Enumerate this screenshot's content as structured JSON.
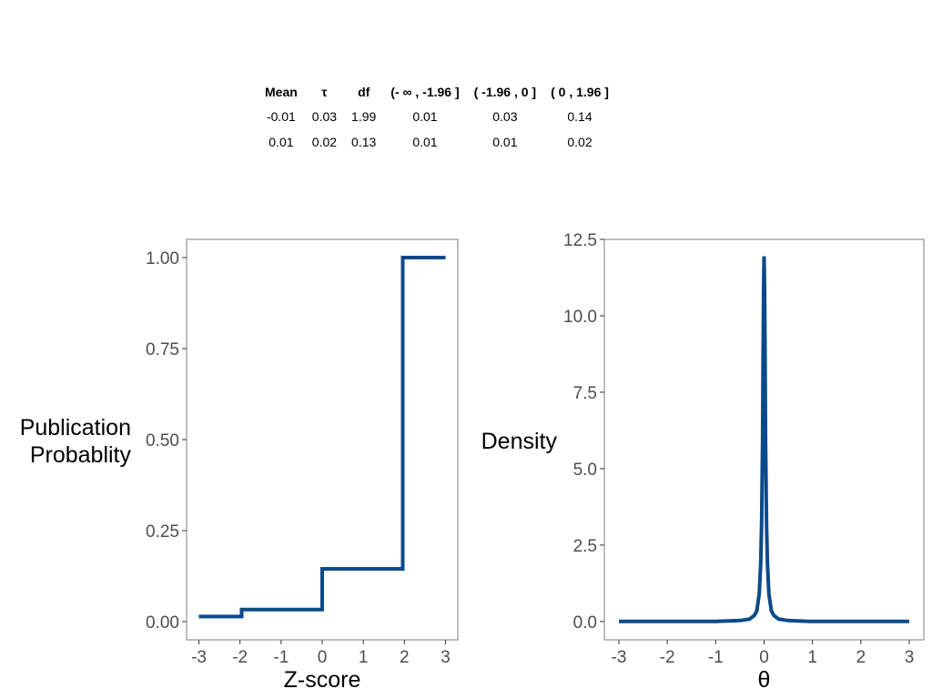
{
  "table": {
    "headers": [
      "Mean",
      "τ",
      "df",
      "(- ∞ , -1.96 ]",
      "( -1.96 , 0 ]",
      "( 0 , 1.96 ]"
    ],
    "rows": [
      [
        "-0.01",
        "0.03",
        "1.99",
        "0.01",
        "0.03",
        "0.14"
      ],
      [
        "0.01",
        "0.02",
        "0.13",
        "0.01",
        "0.01",
        "0.02"
      ]
    ]
  },
  "chart_data": [
    {
      "type": "line",
      "step": true,
      "xlabel": "Z-score",
      "ylabel_lines": [
        "Publication",
        "Probablity"
      ],
      "xlim": [
        -3.3,
        3.3
      ],
      "ylim": [
        -0.05,
        1.05
      ],
      "xticks": [
        -3,
        -2,
        -1,
        0,
        1,
        2,
        3
      ],
      "xtick_labels": [
        "-3",
        "-2",
        "-1",
        "0",
        "1",
        "2",
        "3"
      ],
      "yticks": [
        0,
        0.25,
        0.5,
        0.75,
        1.0
      ],
      "ytick_labels": [
        "0.00",
        "0.25",
        "0.50",
        "0.75",
        "1.00"
      ],
      "grid": false,
      "color": "#0B4A8A",
      "x": [
        -3,
        -1.96,
        -1.96,
        0,
        0,
        1.96,
        1.96,
        3
      ],
      "y": [
        0.014,
        0.014,
        0.033,
        0.033,
        0.145,
        0.145,
        1.0,
        1.0
      ]
    },
    {
      "type": "line",
      "xlabel": "θ",
      "ylabel": "Density",
      "xlim": [
        -3.3,
        3.3
      ],
      "ylim": [
        -0.6,
        12.5
      ],
      "xticks": [
        -3,
        -2,
        -1,
        0,
        1,
        2,
        3
      ],
      "xtick_labels": [
        "-3",
        "-2",
        "-1",
        "0",
        "1",
        "2",
        "3"
      ],
      "yticks": [
        0,
        2.5,
        5,
        7.5,
        10,
        12.5
      ],
      "ytick_labels": [
        "0.0",
        "2.5",
        "5.0",
        "7.5",
        "10.0",
        "12.5"
      ],
      "grid": false,
      "color": "#0B4A8A",
      "x": [
        -3,
        -1,
        -0.5,
        -0.3,
        -0.2,
        -0.15,
        -0.1,
        -0.07,
        -0.05,
        -0.03,
        -0.02,
        -0.01,
        0,
        0.01,
        0.02,
        0.03,
        0.05,
        0.07,
        0.1,
        0.15,
        0.2,
        0.3,
        0.5,
        1,
        3
      ],
      "y": [
        0,
        0,
        0.03,
        0.08,
        0.2,
        0.35,
        0.9,
        1.9,
        3.2,
        6.0,
        8.6,
        11.0,
        11.95,
        11.0,
        8.6,
        6.0,
        3.2,
        1.9,
        0.9,
        0.35,
        0.2,
        0.08,
        0.03,
        0,
        0
      ]
    }
  ]
}
